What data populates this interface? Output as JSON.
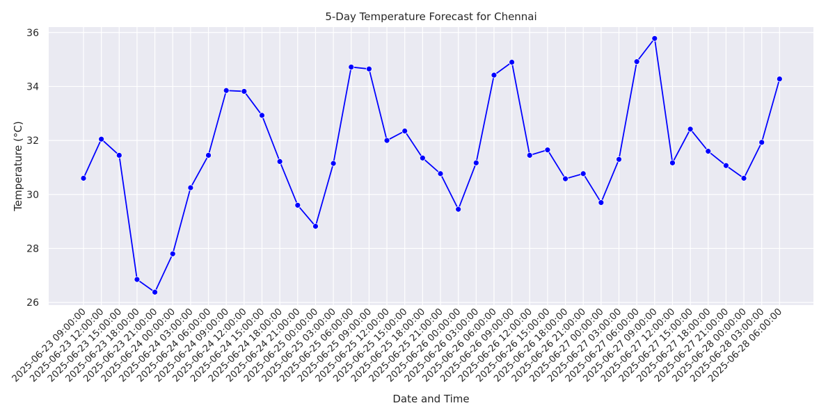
{
  "chart_data": {
    "type": "line",
    "title": "5-Day Temperature Forecast for Chennai",
    "xlabel": "Date and Time",
    "ylabel": "Temperature (°C)",
    "x": [
      "2025-06-23 09:00:00",
      "2025-06-23 12:00:00",
      "2025-06-23 15:00:00",
      "2025-06-23 18:00:00",
      "2025-06-23 21:00:00",
      "2025-06-24 00:00:00",
      "2025-06-24 03:00:00",
      "2025-06-24 06:00:00",
      "2025-06-24 09:00:00",
      "2025-06-24 12:00:00",
      "2025-06-24 15:00:00",
      "2025-06-24 18:00:00",
      "2025-06-24 21:00:00",
      "2025-06-25 00:00:00",
      "2025-06-25 03:00:00",
      "2025-06-25 06:00:00",
      "2025-06-25 09:00:00",
      "2025-06-25 12:00:00",
      "2025-06-25 15:00:00",
      "2025-06-25 18:00:00",
      "2025-06-25 21:00:00",
      "2025-06-26 00:00:00",
      "2025-06-26 03:00:00",
      "2025-06-26 06:00:00",
      "2025-06-26 09:00:00",
      "2025-06-26 12:00:00",
      "2025-06-26 15:00:00",
      "2025-06-26 18:00:00",
      "2025-06-26 21:00:00",
      "2025-06-27 00:00:00",
      "2025-06-27 03:00:00",
      "2025-06-27 06:00:00",
      "2025-06-27 09:00:00",
      "2025-06-27 12:00:00",
      "2025-06-27 15:00:00",
      "2025-06-27 18:00:00",
      "2025-06-27 21:00:00",
      "2025-06-28 00:00:00",
      "2025-06-28 03:00:00",
      "2025-06-28 06:00:00"
    ],
    "series": [
      {
        "values": [
          30.6,
          32.05,
          31.45,
          26.85,
          26.38,
          27.8,
          30.25,
          31.45,
          33.85,
          33.82,
          32.93,
          31.22,
          29.6,
          28.82,
          31.15,
          34.72,
          34.65,
          32.0,
          32.35,
          31.35,
          30.77,
          29.45,
          31.17,
          34.42,
          34.9,
          31.45,
          31.65,
          30.58,
          30.77,
          29.7,
          31.3,
          34.92,
          35.78,
          31.17,
          32.42,
          31.6,
          31.07,
          30.6,
          31.93,
          34.28
        ],
        "color": "#0000ff"
      }
    ],
    "yticks": [
      26,
      28,
      30,
      32,
      34,
      36
    ],
    "ylim": [
      25.9,
      36.2
    ],
    "grid": true,
    "background": "#eaeaf2",
    "grid_color": "#ffffff"
  }
}
